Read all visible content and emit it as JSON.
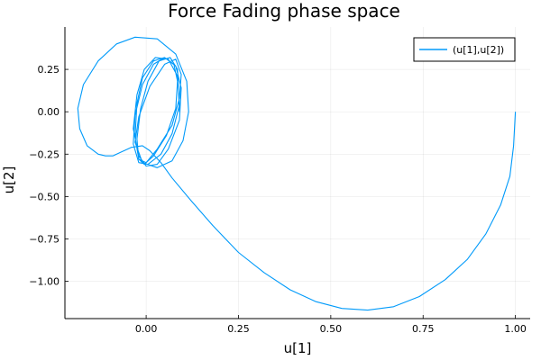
{
  "chart_data": {
    "type": "line",
    "title": "Force Fading phase space",
    "xlabel": "u[1]",
    "ylabel": "u[2]",
    "xlim": [
      -0.22,
      1.04
    ],
    "ylim": [
      -1.22,
      0.5
    ],
    "x_ticks": [
      0.0,
      0.25,
      0.5,
      0.75,
      1.0
    ],
    "x_tick_labels": [
      "0.00",
      "0.25",
      "0.50",
      "0.75",
      "1.00"
    ],
    "y_ticks": [
      -1.0,
      -0.75,
      -0.5,
      -0.25,
      0.0,
      0.25
    ],
    "y_tick_labels": [
      "−1.00",
      "−0.75",
      "−0.50",
      "−0.25",
      "0.00",
      "0.25"
    ],
    "grid": true,
    "legend_position": "top-right",
    "color": "#009AFA",
    "series": [
      {
        "name": "(u[1],u[2])",
        "x": [
          1.0,
          0.995,
          0.985,
          0.96,
          0.92,
          0.87,
          0.81,
          0.74,
          0.67,
          0.6,
          0.53,
          0.46,
          0.39,
          0.32,
          0.25,
          0.18,
          0.12,
          0.07,
          0.04,
          0.01,
          -0.01,
          -0.04,
          -0.07,
          -0.09,
          -0.1,
          -0.11,
          -0.13,
          -0.16,
          -0.18,
          -0.185,
          -0.17,
          -0.13,
          -0.08,
          -0.03,
          0.03,
          0.08,
          0.11,
          0.115,
          0.1,
          0.07,
          0.03,
          -0.01,
          -0.03,
          -0.02,
          0.01,
          0.05,
          0.08,
          0.095,
          0.09,
          0.07,
          0.03,
          0.0,
          -0.02,
          -0.03,
          -0.025,
          -0.01,
          0.02,
          0.05,
          0.08,
          0.095,
          0.09,
          0.06,
          0.03,
          0.0,
          -0.02,
          -0.035,
          -0.025,
          -0.005,
          0.025,
          0.06,
          0.085,
          0.09,
          0.07,
          0.04,
          0.005,
          -0.02,
          -0.035,
          -0.03,
          -0.01,
          0.02,
          0.05,
          0.075,
          0.085,
          0.08,
          0.055,
          0.02,
          -0.005,
          -0.02,
          -0.025,
          -0.015,
          0.005,
          0.035,
          0.065,
          0.085,
          0.09
        ],
        "y": [
          0.0,
          -0.2,
          -0.38,
          -0.55,
          -0.72,
          -0.87,
          -0.99,
          -1.09,
          -1.15,
          -1.17,
          -1.16,
          -1.12,
          -1.05,
          -0.95,
          -0.83,
          -0.67,
          -0.52,
          -0.39,
          -0.3,
          -0.23,
          -0.2,
          -0.21,
          -0.24,
          -0.26,
          -0.26,
          -0.26,
          -0.25,
          -0.2,
          -0.1,
          0.02,
          0.16,
          0.3,
          0.4,
          0.44,
          0.43,
          0.34,
          0.18,
          0.0,
          -0.17,
          -0.29,
          -0.33,
          -0.3,
          -0.18,
          -0.03,
          0.15,
          0.28,
          0.31,
          0.22,
          0.08,
          -0.08,
          -0.22,
          -0.3,
          -0.28,
          -0.15,
          0.05,
          0.2,
          0.3,
          0.32,
          0.27,
          0.14,
          -0.05,
          -0.22,
          -0.31,
          -0.32,
          -0.26,
          -0.1,
          0.1,
          0.25,
          0.32,
          0.31,
          0.21,
          0.04,
          -0.13,
          -0.25,
          -0.31,
          -0.3,
          -0.19,
          -0.02,
          0.16,
          0.28,
          0.32,
          0.28,
          0.18,
          0.02,
          -0.14,
          -0.26,
          -0.31,
          -0.28,
          -0.16,
          0.02,
          0.18,
          0.3,
          0.32,
          0.25,
          0.0
        ]
      }
    ]
  }
}
